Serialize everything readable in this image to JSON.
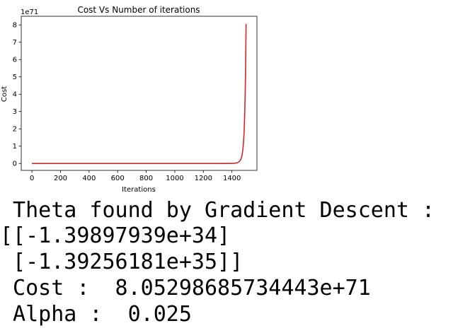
{
  "chart_data": {
    "type": "line",
    "title": "Cost Vs Number of iterations",
    "xlabel": "Iterations",
    "ylabel": "Cost",
    "y_offset_label": "1e71",
    "xlim": [
      -75,
      1575
    ],
    "ylim": [
      -0.4,
      8.5
    ],
    "x_ticks": [
      0,
      200,
      400,
      600,
      800,
      1000,
      1200,
      1400
    ],
    "x_tick_labels": [
      "0",
      "200",
      "400",
      "600",
      "800",
      "1000",
      "1200",
      "1400"
    ],
    "y_ticks": [
      0,
      1,
      2,
      3,
      4,
      5,
      6,
      7,
      8
    ],
    "y_tick_labels": [
      "0",
      "1",
      "2",
      "3",
      "4",
      "5",
      "6",
      "7",
      "8"
    ],
    "grid": false,
    "series": [
      {
        "color": "#d62728",
        "x": [
          0,
          1400,
          1420,
          1440,
          1450,
          1460,
          1465,
          1470,
          1475,
          1480,
          1485,
          1490,
          1495,
          1499
        ],
        "y": [
          0,
          0.002,
          0.012,
          0.05,
          0.1,
          0.2,
          0.3,
          0.45,
          0.7,
          1.1,
          1.8,
          3.0,
          5.0,
          8.05
        ]
      }
    ]
  },
  "output": {
    "lines": [
      " Theta found by Gradient Descent :",
      "[[-1.39897939e+34]",
      " [-1.39256181e+35]]",
      " Cost :  8.05298685734443e+71",
      " Alpha :  0.025"
    ]
  }
}
